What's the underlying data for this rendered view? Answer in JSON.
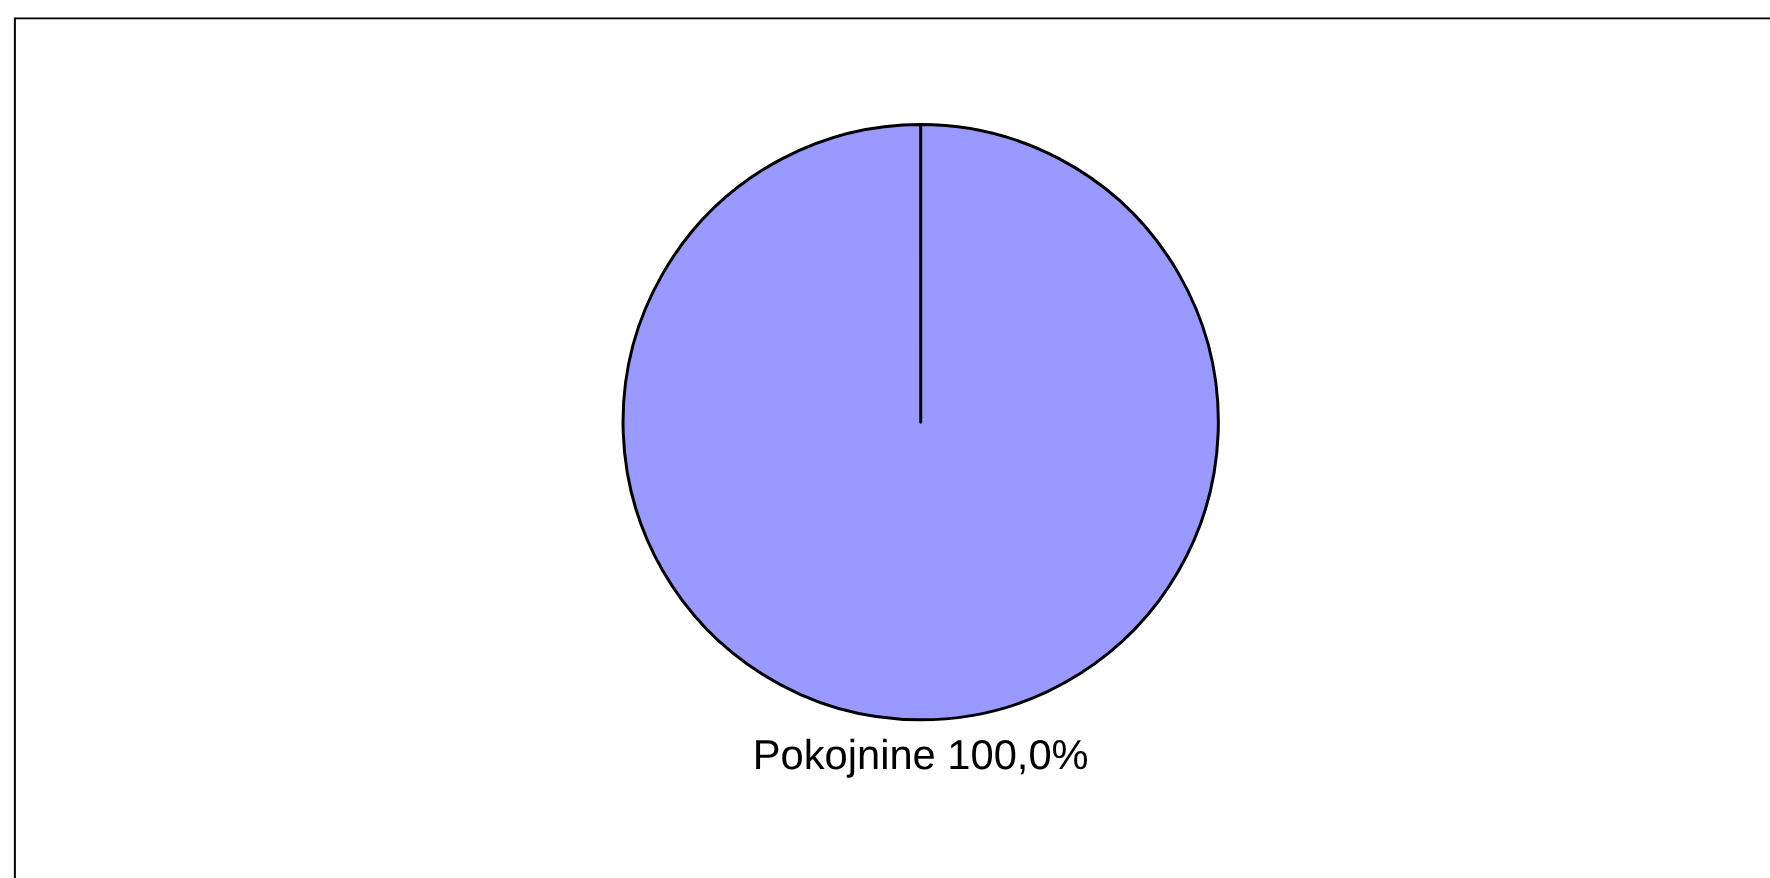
{
  "chart_data": {
    "type": "pie",
    "categories": [
      "Pokojnine"
    ],
    "values": [
      100
    ],
    "colors": [
      "#9999ff"
    ],
    "value_labels": [
      "100,0%"
    ]
  }
}
